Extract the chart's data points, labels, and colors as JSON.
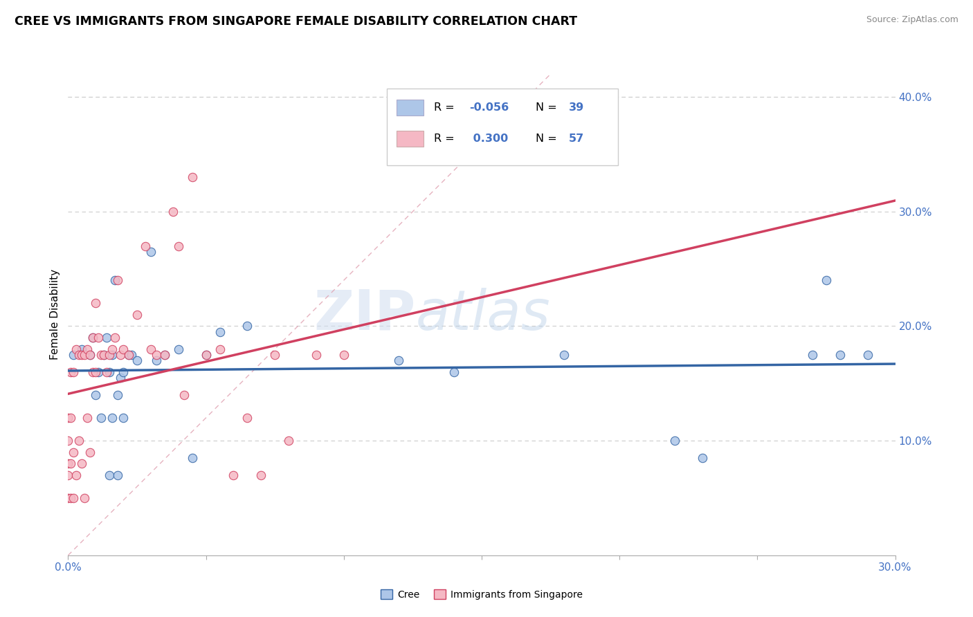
{
  "title": "CREE VS IMMIGRANTS FROM SINGAPORE FEMALE DISABILITY CORRELATION CHART",
  "source": "Source: ZipAtlas.com",
  "ylabel": "Female Disability",
  "xlim": [
    0.0,
    0.3
  ],
  "ylim": [
    0.0,
    0.42
  ],
  "xticks": [
    0.0,
    0.05,
    0.1,
    0.15,
    0.2,
    0.25,
    0.3
  ],
  "xticklabels": [
    "0.0%",
    "",
    "",
    "",
    "",
    "",
    "30.0%"
  ],
  "yticks_right": [
    0.1,
    0.2,
    0.3,
    0.4
  ],
  "ytick_labels_right": [
    "10.0%",
    "20.0%",
    "30.0%",
    "40.0%"
  ],
  "legend_r1": "-0.056",
  "legend_n1": "39",
  "legend_r2": "0.300",
  "legend_n2": "57",
  "color_cree": "#adc6e8",
  "color_singapore": "#f5b8c4",
  "color_cree_line": "#3465a4",
  "color_singapore_line": "#d04060",
  "color_diag_line": "#e0a0b0",
  "watermark_zip": "ZIP",
  "watermark_atlas": "atlas",
  "cree_scatter_x": [
    0.002,
    0.005,
    0.008,
    0.009,
    0.01,
    0.011,
    0.012,
    0.013,
    0.014,
    0.015,
    0.015,
    0.016,
    0.016,
    0.017,
    0.018,
    0.018,
    0.019,
    0.02,
    0.02,
    0.022,
    0.023,
    0.025,
    0.03,
    0.032,
    0.035,
    0.04,
    0.045,
    0.05,
    0.055,
    0.065,
    0.12,
    0.14,
    0.18,
    0.22,
    0.23,
    0.27,
    0.275,
    0.28,
    0.29
  ],
  "cree_scatter_y": [
    0.175,
    0.18,
    0.175,
    0.19,
    0.14,
    0.16,
    0.12,
    0.175,
    0.19,
    0.07,
    0.16,
    0.175,
    0.12,
    0.24,
    0.07,
    0.14,
    0.155,
    0.16,
    0.12,
    0.175,
    0.175,
    0.17,
    0.265,
    0.17,
    0.175,
    0.18,
    0.085,
    0.175,
    0.195,
    0.2,
    0.17,
    0.16,
    0.175,
    0.1,
    0.085,
    0.175,
    0.24,
    0.175,
    0.175
  ],
  "singapore_scatter_x": [
    0.0,
    0.0,
    0.0,
    0.0,
    0.0,
    0.001,
    0.001,
    0.001,
    0.001,
    0.002,
    0.002,
    0.002,
    0.003,
    0.003,
    0.004,
    0.004,
    0.005,
    0.005,
    0.006,
    0.006,
    0.007,
    0.007,
    0.008,
    0.008,
    0.009,
    0.009,
    0.01,
    0.01,
    0.011,
    0.012,
    0.013,
    0.014,
    0.015,
    0.016,
    0.017,
    0.018,
    0.019,
    0.02,
    0.022,
    0.025,
    0.028,
    0.03,
    0.032,
    0.035,
    0.038,
    0.04,
    0.042,
    0.045,
    0.05,
    0.055,
    0.06,
    0.065,
    0.07,
    0.075,
    0.08,
    0.09,
    0.1
  ],
  "singapore_scatter_y": [
    0.05,
    0.07,
    0.08,
    0.1,
    0.12,
    0.05,
    0.08,
    0.12,
    0.16,
    0.05,
    0.09,
    0.16,
    0.07,
    0.18,
    0.1,
    0.175,
    0.08,
    0.175,
    0.05,
    0.175,
    0.12,
    0.18,
    0.09,
    0.175,
    0.16,
    0.19,
    0.16,
    0.22,
    0.19,
    0.175,
    0.175,
    0.16,
    0.175,
    0.18,
    0.19,
    0.24,
    0.175,
    0.18,
    0.175,
    0.21,
    0.27,
    0.18,
    0.175,
    0.175,
    0.3,
    0.27,
    0.14,
    0.33,
    0.175,
    0.18,
    0.07,
    0.12,
    0.07,
    0.175,
    0.1,
    0.175,
    0.175
  ]
}
